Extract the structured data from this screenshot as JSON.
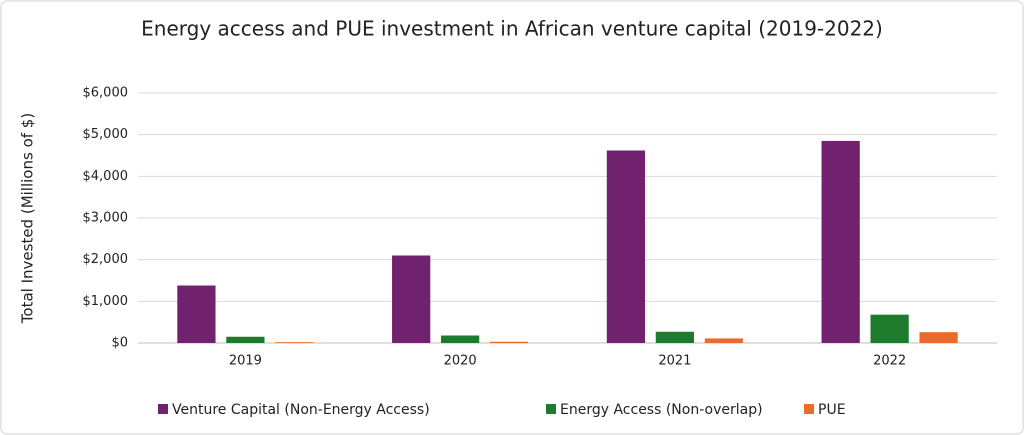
{
  "chart_data": {
    "type": "bar",
    "title": "Energy access and PUE investment in African venture capital (2019-2022)",
    "y_label": "Total Invested (Millions of $)",
    "categories": [
      "2019",
      "2020",
      "2021",
      "2022"
    ],
    "series": [
      {
        "name": "Venture Capital (Non-Energy Access)",
        "color": "#70226e",
        "values": [
          1380,
          2100,
          4620,
          4850
        ]
      },
      {
        "name": "Energy Access (Non-overlap)",
        "color": "#1e7b2e",
        "values": [
          150,
          180,
          270,
          680
        ]
      },
      {
        "name": "PUE",
        "color": "#ee6a2c",
        "values": [
          20,
          30,
          110,
          260
        ]
      }
    ],
    "ylim": [
      0,
      6000
    ],
    "yticks": [
      {
        "value": 0,
        "label": "$0"
      },
      {
        "value": 1000,
        "label": "$1,000"
      },
      {
        "value": 2000,
        "label": "$2,000"
      },
      {
        "value": 3000,
        "label": "$3,000"
      },
      {
        "value": 4000,
        "label": "$4,000"
      },
      {
        "value": 5000,
        "label": "$5,000"
      },
      {
        "value": 6000,
        "label": "$6,000"
      }
    ],
    "grid": true,
    "legend": "bottom"
  }
}
